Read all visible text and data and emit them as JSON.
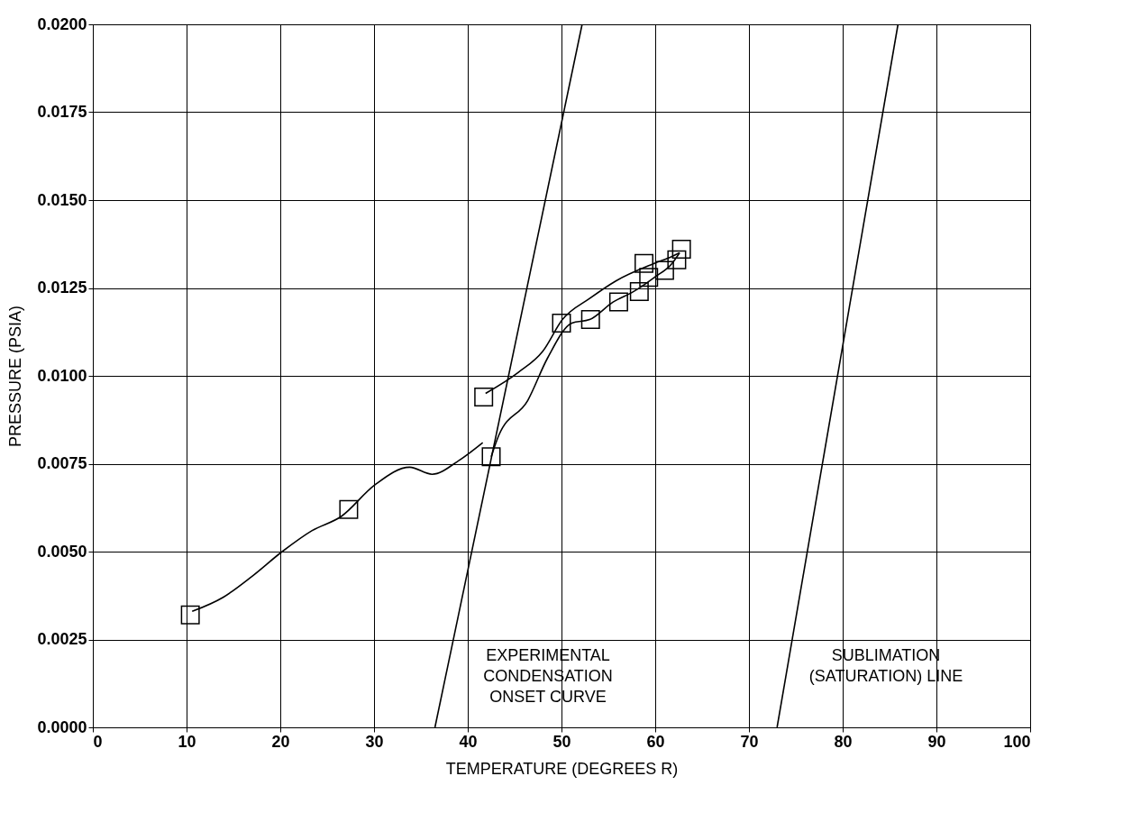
{
  "chart_data": {
    "type": "scatter",
    "xlabel": "TEMPERATURE (DEGREES R)",
    "ylabel": "PRESSURE (PSIA)",
    "xlim": [
      0,
      100
    ],
    "xticks": [
      0,
      10,
      20,
      30,
      40,
      50,
      60,
      70,
      80,
      90,
      100
    ],
    "ylim": [
      0,
      0.02
    ],
    "yticks": [
      {
        "value": 0,
        "label": "0.0000"
      },
      {
        "value": 0.0025,
        "label": "0.0025"
      },
      {
        "value": 0.005,
        "label": "0.0050"
      },
      {
        "value": 0.0075,
        "label": "0.0075"
      },
      {
        "value": 0.01,
        "label": "0.0100"
      },
      {
        "value": 0.0125,
        "label": "0.0125"
      },
      {
        "value": 0.015,
        "label": "0.0150"
      },
      {
        "value": 0.0175,
        "label": "0.0175"
      },
      {
        "value": 0.02,
        "label": "0.0200"
      }
    ],
    "grid": true,
    "series": [
      {
        "marker": "square",
        "color": "#000000",
        "x": [
          10.4,
          27.3,
          41.7,
          42.5,
          50.0,
          53.1,
          56.1,
          58.3,
          58.8,
          59.3,
          61.0,
          62.3,
          62.8
        ],
        "values": [
          0.0032,
          0.0062,
          0.0094,
          0.0077,
          0.0115,
          0.0116,
          0.0121,
          0.0124,
          0.0132,
          0.0128,
          0.013,
          0.0133,
          0.0136
        ]
      },
      {
        "type": "line",
        "color": "#000000",
        "x": [
          10.6,
          13.9,
          17.0,
          20.2,
          23.4,
          26.5,
          30.1,
          33.8,
          36.2,
          39.1,
          41.6
        ],
        "values": [
          0.0033,
          0.0037,
          0.0043,
          0.005,
          0.0056,
          0.006,
          0.0069,
          0.0074,
          0.0072,
          0.0076,
          0.0081
        ]
      },
      {
        "type": "line",
        "color": "#000000",
        "x": [
          42.5,
          43.3,
          46.4,
          48.5,
          51.1,
          53.0,
          55.5,
          57.7,
          59.9,
          61.8,
          62.6
        ],
        "values": [
          0.0077,
          0.0083,
          0.0093,
          0.0105,
          0.0115,
          0.0116,
          0.0121,
          0.0124,
          0.0128,
          0.0132,
          0.0135
        ]
      },
      {
        "type": "line",
        "color": "#000000",
        "x": [
          62.6,
          61.8,
          59.9,
          55.8,
          53.0,
          50.1,
          48.0,
          45.4,
          41.9
        ],
        "values": [
          0.0135,
          0.0134,
          0.0132,
          0.0127,
          0.0122,
          0.0116,
          0.0107,
          0.0101,
          0.0095
        ]
      },
      {
        "type": "line",
        "color": "#000000",
        "x": [
          36.5,
          52.2
        ],
        "values": [
          0,
          0.02
        ]
      },
      {
        "type": "line",
        "color": "#000000",
        "x": [
          73.0,
          85.9
        ],
        "values": [
          0,
          0.02
        ]
      }
    ],
    "annotations": [
      "EXPERIMENTAL\nCONDENSATION\nONSET CURVE",
      "SUBLIMATION\n(SATURATION) LINE"
    ]
  }
}
